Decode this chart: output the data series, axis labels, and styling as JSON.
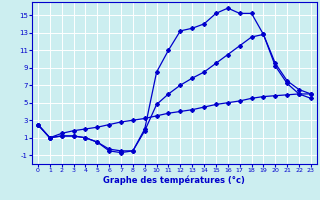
{
  "xlabel": "Graphe des températures (°c)",
  "background_color": "#cceef0",
  "line_color": "#0000cc",
  "grid_color": "#ffffff",
  "xlim": [
    -0.5,
    23.5
  ],
  "ylim": [
    -2.0,
    16.5
  ],
  "yticks": [
    -1,
    1,
    3,
    5,
    7,
    9,
    11,
    13,
    15
  ],
  "xticks": [
    0,
    1,
    2,
    3,
    4,
    5,
    6,
    7,
    8,
    9,
    10,
    11,
    12,
    13,
    14,
    15,
    16,
    17,
    18,
    19,
    20,
    21,
    22,
    23
  ],
  "series1_x": [
    0,
    1,
    2,
    3,
    4,
    5,
    6,
    7,
    8,
    9,
    10,
    11,
    12,
    13,
    14,
    15,
    16,
    17,
    18,
    19,
    20,
    21,
    22,
    23
  ],
  "series1_y": [
    2.5,
    1.0,
    1.2,
    1.2,
    1.0,
    0.5,
    -0.5,
    -0.7,
    -0.5,
    2.0,
    8.5,
    11.0,
    13.2,
    13.5,
    14.0,
    15.2,
    15.8,
    15.2,
    15.2,
    12.8,
    9.2,
    7.2,
    6.0,
    5.5
  ],
  "series2_x": [
    0,
    1,
    2,
    3,
    4,
    5,
    6,
    7,
    8,
    9,
    10,
    11,
    12,
    13,
    14,
    15,
    16,
    17,
    18,
    19,
    20,
    21,
    22,
    23
  ],
  "series2_y": [
    2.5,
    1.0,
    1.5,
    1.8,
    2.0,
    2.2,
    2.5,
    2.8,
    3.0,
    3.2,
    3.5,
    3.8,
    4.0,
    4.2,
    4.5,
    4.8,
    5.0,
    5.2,
    5.5,
    5.7,
    5.8,
    5.9,
    6.0,
    6.0
  ],
  "series3_x": [
    0,
    1,
    2,
    3,
    4,
    5,
    6,
    7,
    8,
    9,
    10,
    11,
    12,
    13,
    14,
    15,
    16,
    17,
    18,
    19,
    20,
    21,
    22,
    23
  ],
  "series3_y": [
    2.5,
    1.0,
    1.2,
    1.2,
    1.0,
    0.5,
    -0.3,
    -0.5,
    -0.5,
    1.8,
    4.8,
    6.0,
    7.0,
    7.8,
    8.5,
    9.5,
    10.5,
    11.5,
    12.5,
    12.8,
    9.5,
    7.5,
    6.5,
    6.0
  ]
}
